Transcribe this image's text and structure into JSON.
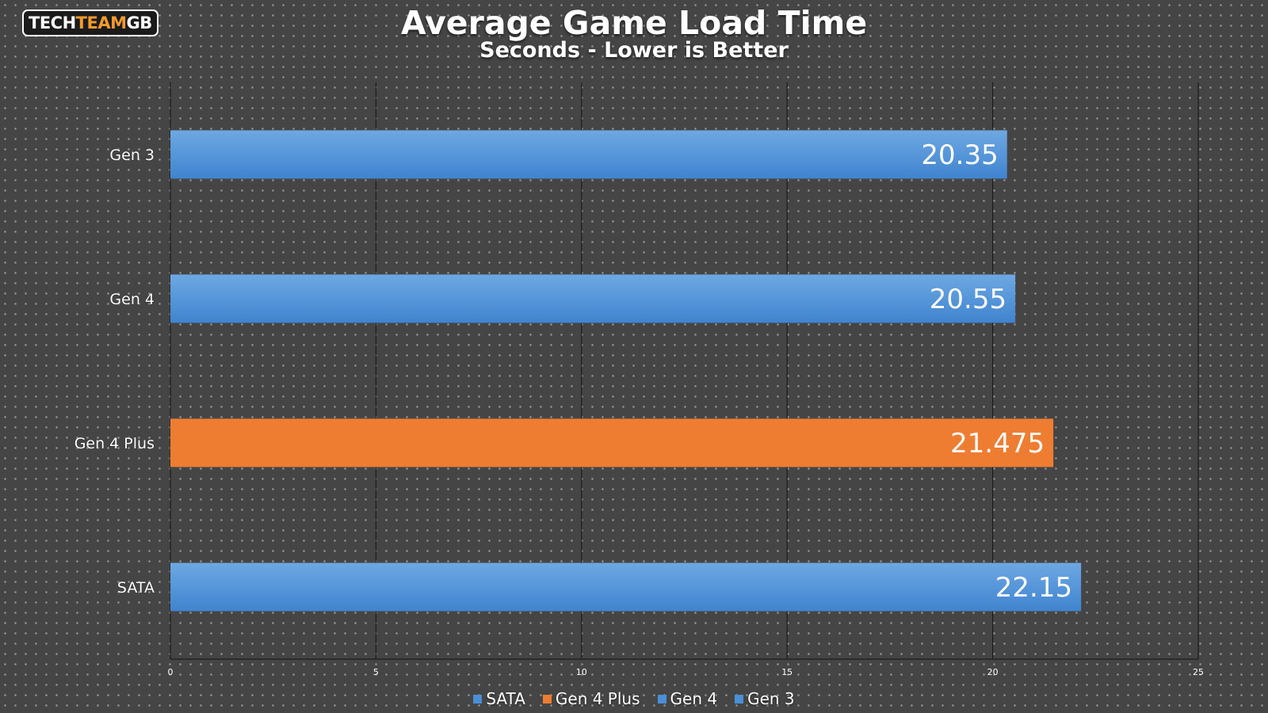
{
  "logo": {
    "part1": "TECH",
    "part2": "TEAM",
    "part3": "GB"
  },
  "chart_data": {
    "type": "bar",
    "orientation": "horizontal",
    "title": "Average Game Load Time",
    "subtitle": "Seconds - Lower is Better",
    "categories": [
      "Gen 3",
      "Gen 4",
      "Gen 4 Plus",
      "SATA"
    ],
    "values": [
      20.35,
      20.55,
      21.475,
      22.15
    ],
    "bar_colors": [
      "#4a8fd6",
      "#4a8fd6",
      "#ee7d32",
      "#4a8fd6"
    ],
    "xlim": [
      0,
      25
    ],
    "xticks": [
      "0",
      "5",
      "10",
      "15",
      "20",
      "25"
    ],
    "grid": true,
    "legend_position": "bottom",
    "legend": [
      {
        "name": "SATA",
        "color": "#4a8fd6"
      },
      {
        "name": "Gen 4 Plus",
        "color": "#ee7d32"
      },
      {
        "name": "Gen 4",
        "color": "#4a8fd6"
      },
      {
        "name": "Gen 3",
        "color": "#4a8fd6"
      }
    ]
  }
}
